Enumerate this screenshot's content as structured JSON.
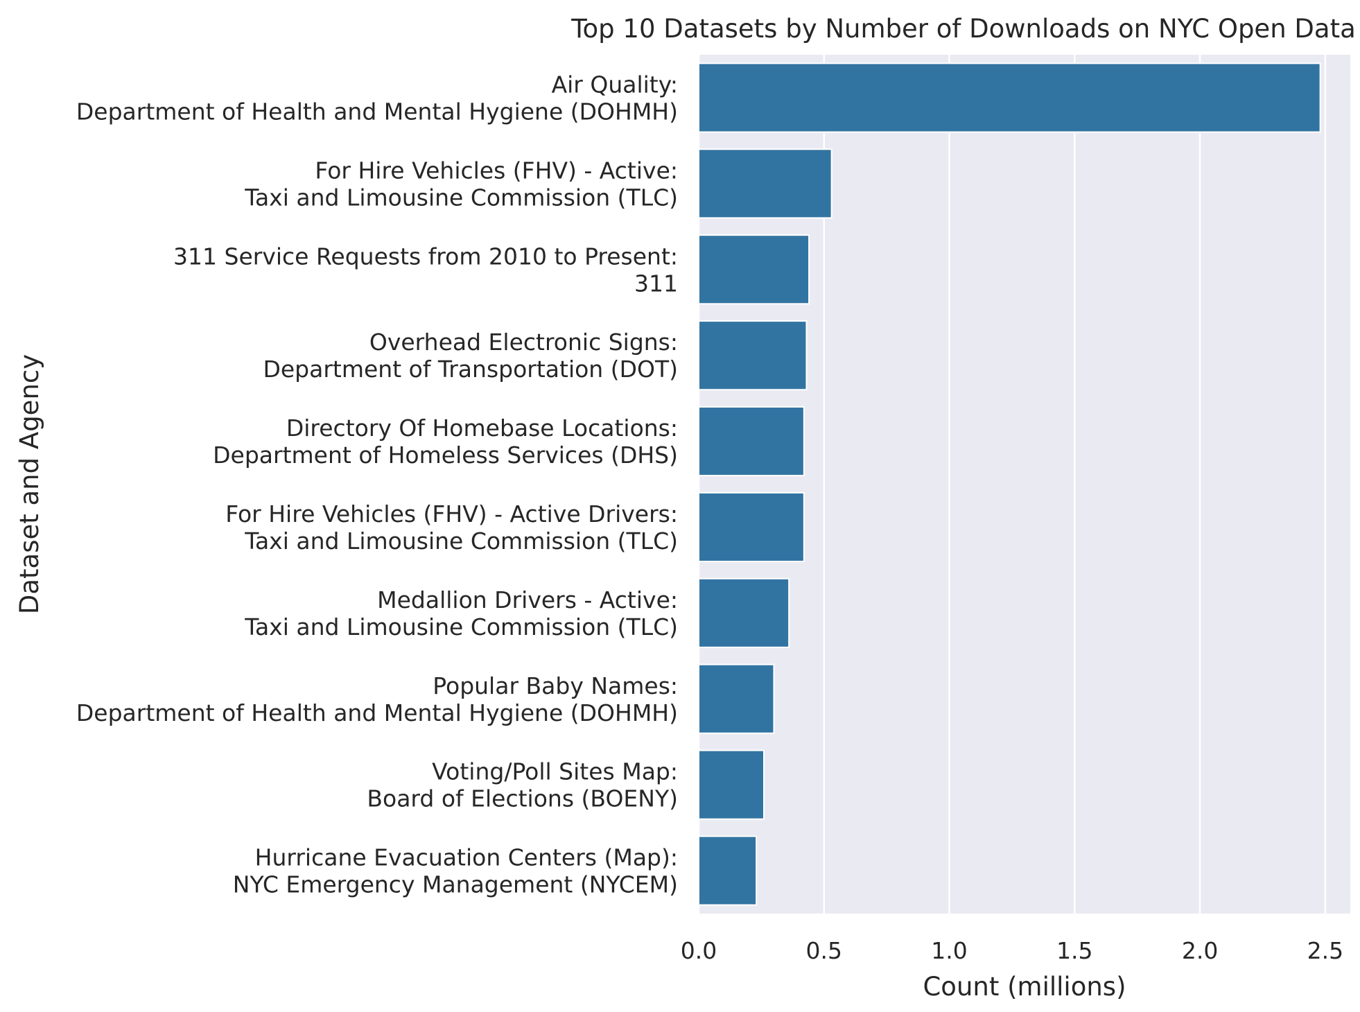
{
  "chart_data": {
    "type": "bar",
    "orientation": "horizontal",
    "title": "Top 10 Datasets by Number of Downloads on NYC Open Data",
    "xlabel": "Count (millions)",
    "ylabel": "Dataset and Agency",
    "xlim": [
      0,
      2.6
    ],
    "xticks": [
      0.0,
      0.5,
      1.0,
      1.5,
      2.0,
      2.5
    ],
    "xtick_labels": [
      "0.0",
      "0.5",
      "1.0",
      "1.5",
      "2.0",
      "2.5"
    ],
    "grid": true,
    "bar_color": "#3274a1",
    "background_color": "#eaeaf2",
    "categories": [
      [
        "Air Quality:",
        "Department of Health and Mental Hygiene (DOHMH)"
      ],
      [
        "For Hire Vehicles (FHV) - Active:",
        "Taxi and Limousine Commission (TLC)"
      ],
      [
        "311 Service Requests from 2010 to Present:",
        "311"
      ],
      [
        "Overhead Electronic Signs:",
        "Department of Transportation (DOT)"
      ],
      [
        "Directory Of Homebase Locations:",
        "Department of Homeless Services (DHS)"
      ],
      [
        "For Hire Vehicles (FHV) - Active Drivers:",
        "Taxi and Limousine Commission (TLC)"
      ],
      [
        "Medallion Drivers - Active:",
        "Taxi and Limousine Commission (TLC)"
      ],
      [
        "Popular Baby Names:",
        "Department of Health and Mental Hygiene (DOHMH)"
      ],
      [
        "Voting/Poll Sites Map:",
        "Board of Elections (BOENY)"
      ],
      [
        "Hurricane Evacuation Centers (Map):",
        "NYC Emergency Management (NYCEM)"
      ]
    ],
    "values": [
      2.48,
      0.53,
      0.44,
      0.43,
      0.42,
      0.42,
      0.36,
      0.3,
      0.26,
      0.23
    ]
  }
}
